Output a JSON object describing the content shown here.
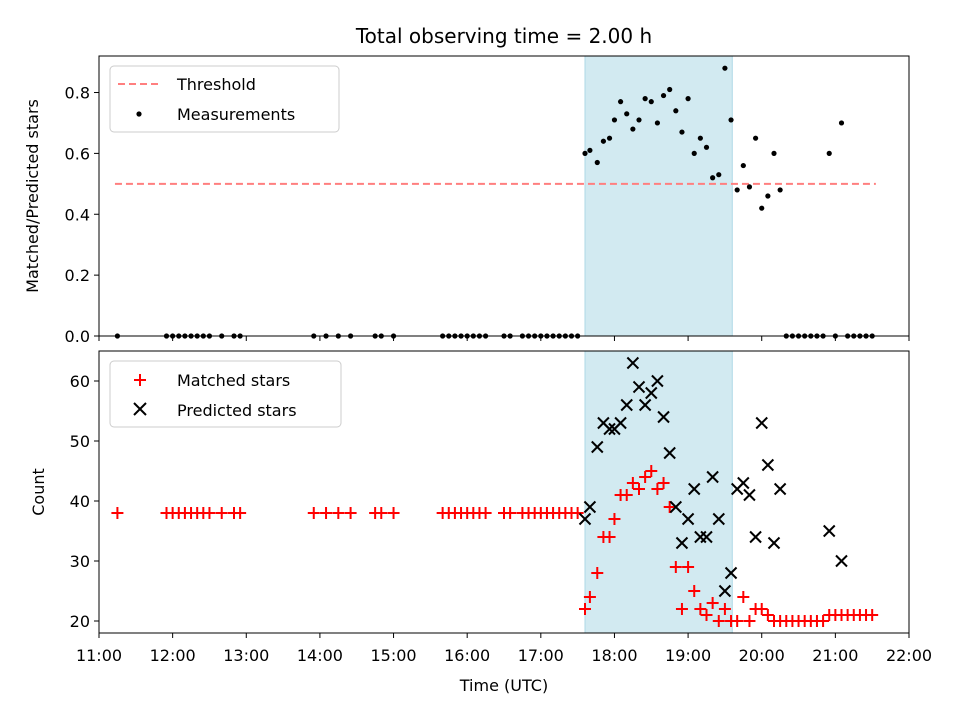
{
  "chart_data": [
    {
      "type": "scatter",
      "panel": "top",
      "title": "Total observing time = 2.00 h",
      "xlabel": "",
      "ylabel": "Matched/Predicted stars",
      "xlim": [
        "11:00",
        "22:00"
      ],
      "ylim": [
        0,
        0.92
      ],
      "yticks": [
        0.0,
        0.2,
        0.4,
        0.6,
        0.8
      ],
      "ytick_labels": [
        "0.0",
        "0.2",
        "0.4",
        "0.6",
        "0.8"
      ],
      "legend_placement": "upper-left",
      "shaded_interval": {
        "start": "17:36",
        "end": "19:36",
        "color": "#add8e6"
      },
      "threshold": {
        "name": "Threshold",
        "value": 0.5,
        "x_start": "11:13",
        "x_end": "21:33",
        "color": "#ff7f7f",
        "style": "dashed"
      },
      "series": [
        {
          "name": "Measurements",
          "marker": "dot",
          "color": "#000000",
          "points": [
            [
              "11:15",
              0.0
            ],
            [
              "11:55",
              0.0
            ],
            [
              "12:00",
              0.0
            ],
            [
              "12:05",
              0.0
            ],
            [
              "12:10",
              0.0
            ],
            [
              "12:15",
              0.0
            ],
            [
              "12:20",
              0.0
            ],
            [
              "12:25",
              0.0
            ],
            [
              "12:30",
              0.0
            ],
            [
              "12:40",
              0.0
            ],
            [
              "12:50",
              0.0
            ],
            [
              "12:55",
              0.0
            ],
            [
              "13:55",
              0.0
            ],
            [
              "14:05",
              0.0
            ],
            [
              "14:15",
              0.0
            ],
            [
              "14:25",
              0.0
            ],
            [
              "14:45",
              0.0
            ],
            [
              "14:50",
              0.0
            ],
            [
              "15:00",
              0.0
            ],
            [
              "15:40",
              0.0
            ],
            [
              "15:45",
              0.0
            ],
            [
              "15:50",
              0.0
            ],
            [
              "15:55",
              0.0
            ],
            [
              "16:00",
              0.0
            ],
            [
              "16:05",
              0.0
            ],
            [
              "16:10",
              0.0
            ],
            [
              "16:15",
              0.0
            ],
            [
              "16:30",
              0.0
            ],
            [
              "16:35",
              0.0
            ],
            [
              "16:45",
              0.0
            ],
            [
              "16:50",
              0.0
            ],
            [
              "16:55",
              0.0
            ],
            [
              "17:00",
              0.0
            ],
            [
              "17:05",
              0.0
            ],
            [
              "17:10",
              0.0
            ],
            [
              "17:15",
              0.0
            ],
            [
              "17:20",
              0.0
            ],
            [
              "17:25",
              0.0
            ],
            [
              "17:30",
              0.0
            ],
            [
              "17:36",
              0.6
            ],
            [
              "17:40",
              0.61
            ],
            [
              "17:46",
              0.57
            ],
            [
              "17:51",
              0.64
            ],
            [
              "17:56",
              0.65
            ],
            [
              "18:00",
              0.71
            ],
            [
              "18:05",
              0.77
            ],
            [
              "18:10",
              0.73
            ],
            [
              "18:15",
              0.68
            ],
            [
              "18:20",
              0.71
            ],
            [
              "18:25",
              0.78
            ],
            [
              "18:30",
              0.77
            ],
            [
              "18:35",
              0.7
            ],
            [
              "18:40",
              0.79
            ],
            [
              "18:45",
              0.81
            ],
            [
              "18:50",
              0.74
            ],
            [
              "18:55",
              0.67
            ],
            [
              "19:00",
              0.78
            ],
            [
              "19:05",
              0.6
            ],
            [
              "19:10",
              0.65
            ],
            [
              "19:15",
              0.62
            ],
            [
              "19:20",
              0.52
            ],
            [
              "19:25",
              0.53
            ],
            [
              "19:30",
              0.88
            ],
            [
              "19:35",
              0.71
            ],
            [
              "19:40",
              0.48
            ],
            [
              "19:45",
              0.56
            ],
            [
              "19:50",
              0.49
            ],
            [
              "19:55",
              0.65
            ],
            [
              "20:00",
              0.42
            ],
            [
              "20:05",
              0.46
            ],
            [
              "20:10",
              0.6
            ],
            [
              "20:15",
              0.48
            ],
            [
              "20:20",
              0.0
            ],
            [
              "20:25",
              0.0
            ],
            [
              "20:30",
              0.0
            ],
            [
              "20:35",
              0.0
            ],
            [
              "20:40",
              0.0
            ],
            [
              "20:45",
              0.0
            ],
            [
              "20:50",
              0.0
            ],
            [
              "20:55",
              0.6
            ],
            [
              "21:00",
              0.0
            ],
            [
              "21:05",
              0.7
            ],
            [
              "21:10",
              0.0
            ],
            [
              "21:15",
              0.0
            ],
            [
              "21:20",
              0.0
            ],
            [
              "21:25",
              0.0
            ],
            [
              "21:30",
              0.0
            ]
          ]
        }
      ]
    },
    {
      "type": "scatter",
      "panel": "bottom",
      "title": "",
      "xlabel": "Time (UTC)",
      "ylabel": "Count",
      "xlim": [
        "11:00",
        "22:00"
      ],
      "ylim": [
        18,
        65
      ],
      "xticks": [
        "11:00",
        "12:00",
        "13:00",
        "14:00",
        "15:00",
        "16:00",
        "17:00",
        "18:00",
        "19:00",
        "20:00",
        "21:00",
        "22:00"
      ],
      "yticks": [
        20,
        30,
        40,
        50,
        60
      ],
      "ytick_labels": [
        "20",
        "30",
        "40",
        "50",
        "60"
      ],
      "legend_placement": "upper-left",
      "shaded_interval": {
        "start": "17:36",
        "end": "19:36",
        "color": "#add8e6"
      },
      "series": [
        {
          "name": "Matched stars",
          "marker": "plus",
          "color": "#ff0000",
          "points": [
            [
              "11:15",
              38
            ],
            [
              "11:55",
              38
            ],
            [
              "12:00",
              38
            ],
            [
              "12:05",
              38
            ],
            [
              "12:10",
              38
            ],
            [
              "12:15",
              38
            ],
            [
              "12:20",
              38
            ],
            [
              "12:25",
              38
            ],
            [
              "12:30",
              38
            ],
            [
              "12:40",
              38
            ],
            [
              "12:50",
              38
            ],
            [
              "12:55",
              38
            ],
            [
              "13:55",
              38
            ],
            [
              "14:05",
              38
            ],
            [
              "14:15",
              38
            ],
            [
              "14:25",
              38
            ],
            [
              "14:45",
              38
            ],
            [
              "14:50",
              38
            ],
            [
              "15:00",
              38
            ],
            [
              "15:40",
              38
            ],
            [
              "15:45",
              38
            ],
            [
              "15:50",
              38
            ],
            [
              "15:55",
              38
            ],
            [
              "16:00",
              38
            ],
            [
              "16:05",
              38
            ],
            [
              "16:10",
              38
            ],
            [
              "16:15",
              38
            ],
            [
              "16:30",
              38
            ],
            [
              "16:35",
              38
            ],
            [
              "16:45",
              38
            ],
            [
              "16:50",
              38
            ],
            [
              "16:55",
              38
            ],
            [
              "17:00",
              38
            ],
            [
              "17:05",
              38
            ],
            [
              "17:10",
              38
            ],
            [
              "17:15",
              38
            ],
            [
              "17:20",
              38
            ],
            [
              "17:25",
              38
            ],
            [
              "17:30",
              38
            ],
            [
              "17:36",
              22
            ],
            [
              "17:40",
              24
            ],
            [
              "17:46",
              28
            ],
            [
              "17:51",
              34
            ],
            [
              "17:56",
              34
            ],
            [
              "18:00",
              37
            ],
            [
              "18:05",
              41
            ],
            [
              "18:10",
              41
            ],
            [
              "18:15",
              43
            ],
            [
              "18:20",
              42
            ],
            [
              "18:25",
              44
            ],
            [
              "18:30",
              45
            ],
            [
              "18:35",
              42
            ],
            [
              "18:40",
              43
            ],
            [
              "18:45",
              39
            ],
            [
              "18:50",
              29
            ],
            [
              "18:55",
              22
            ],
            [
              "19:00",
              29
            ],
            [
              "19:05",
              25
            ],
            [
              "19:10",
              22
            ],
            [
              "19:15",
              21
            ],
            [
              "19:20",
              23
            ],
            [
              "19:25",
              20
            ],
            [
              "19:30",
              22
            ],
            [
              "19:35",
              20
            ],
            [
              "19:40",
              20
            ],
            [
              "19:45",
              24
            ],
            [
              "19:50",
              20
            ],
            [
              "19:55",
              22
            ],
            [
              "20:00",
              22
            ],
            [
              "20:05",
              21
            ],
            [
              "20:10",
              20
            ],
            [
              "20:15",
              20
            ],
            [
              "20:20",
              20
            ],
            [
              "20:25",
              20
            ],
            [
              "20:30",
              20
            ],
            [
              "20:35",
              20
            ],
            [
              "20:40",
              20
            ],
            [
              "20:45",
              20
            ],
            [
              "20:50",
              20
            ],
            [
              "20:55",
              21
            ],
            [
              "21:00",
              21
            ],
            [
              "21:05",
              21
            ],
            [
              "21:10",
              21
            ],
            [
              "21:15",
              21
            ],
            [
              "21:20",
              21
            ],
            [
              "21:25",
              21
            ],
            [
              "21:30",
              21
            ]
          ]
        },
        {
          "name": "Predicted stars",
          "marker": "x",
          "color": "#000000",
          "points": [
            [
              "17:36",
              37
            ],
            [
              "17:40",
              39
            ],
            [
              "17:46",
              49
            ],
            [
              "17:51",
              53
            ],
            [
              "17:56",
              52
            ],
            [
              "18:00",
              52
            ],
            [
              "18:05",
              53
            ],
            [
              "18:10",
              56
            ],
            [
              "18:15",
              63
            ],
            [
              "18:20",
              59
            ],
            [
              "18:25",
              56
            ],
            [
              "18:30",
              58
            ],
            [
              "18:35",
              60
            ],
            [
              "18:40",
              54
            ],
            [
              "18:45",
              48
            ],
            [
              "18:50",
              39
            ],
            [
              "18:55",
              33
            ],
            [
              "19:00",
              37
            ],
            [
              "19:05",
              42
            ],
            [
              "19:10",
              34
            ],
            [
              "19:15",
              34
            ],
            [
              "19:20",
              44
            ],
            [
              "19:25",
              37
            ],
            [
              "19:30",
              25
            ],
            [
              "19:35",
              28
            ],
            [
              "19:40",
              42
            ],
            [
              "19:45",
              43
            ],
            [
              "19:50",
              41
            ],
            [
              "19:55",
              34
            ],
            [
              "20:00",
              53
            ],
            [
              "20:05",
              46
            ],
            [
              "20:10",
              33
            ],
            [
              "20:15",
              42
            ],
            [
              "20:55",
              35
            ],
            [
              "21:05",
              30
            ]
          ]
        }
      ]
    }
  ]
}
